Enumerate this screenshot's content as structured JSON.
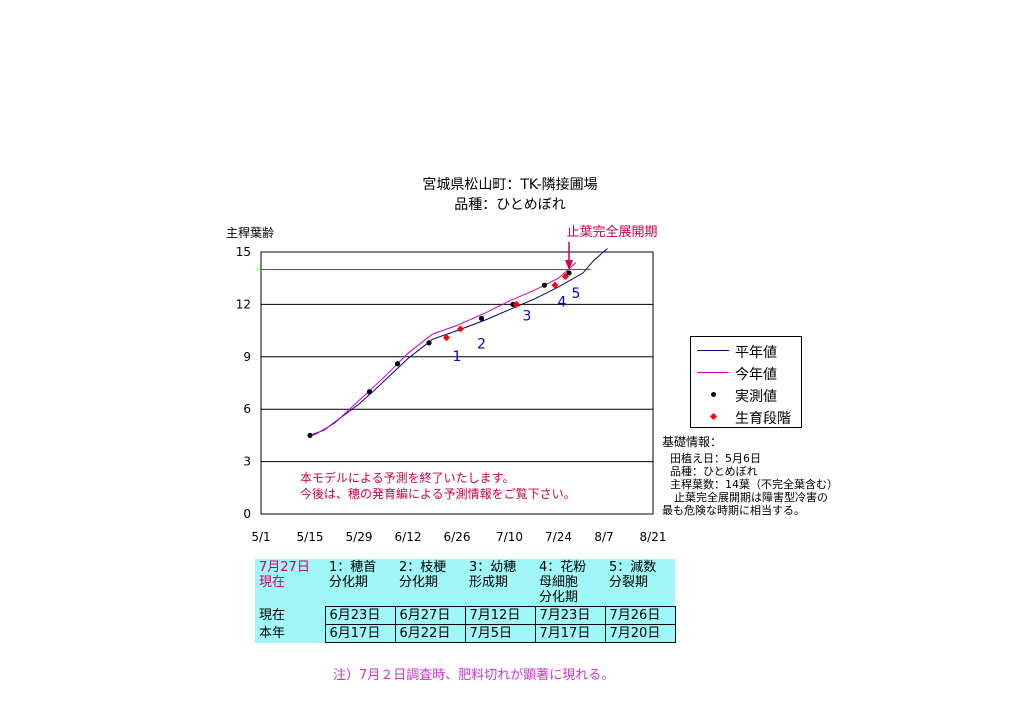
{
  "chart_data": {
    "type": "line",
    "title": "宮城県松山町：TK-隣接圃場",
    "subtitle": "品種：ひとめぼれ",
    "ylabel": "主稈葉齢",
    "xlabel": "",
    "x_ticks": [
      "5/1",
      "5/15",
      "5/29",
      "6/12",
      "6/26",
      "7/10",
      "7/24",
      "8/7",
      "8/21"
    ],
    "xlim": [
      "5/1",
      "8/21"
    ],
    "ylim": [
      0,
      15
    ],
    "y_ticks": [
      0,
      3,
      6,
      9,
      12,
      15
    ],
    "grid": "horizontal",
    "legend_position": "right",
    "series": [
      {
        "name": "平年値",
        "kind": "line",
        "color": "#000080",
        "points": [
          [
            "5/15",
            4.5
          ],
          [
            "5/19",
            4.8
          ],
          [
            "5/29",
            6.3
          ],
          [
            "6/3",
            7.2
          ],
          [
            "6/12",
            8.9
          ],
          [
            "6/19",
            10.0
          ],
          [
            "6/26",
            10.5
          ],
          [
            "7/3",
            11.1
          ],
          [
            "7/10",
            11.7
          ],
          [
            "7/17",
            12.3
          ],
          [
            "7/24",
            13.0
          ],
          [
            "7/31",
            13.8
          ],
          [
            "8/4",
            14.5
          ],
          [
            "8/8",
            15.2
          ]
        ]
      },
      {
        "name": "今年値",
        "kind": "line",
        "color": "#cc00cc",
        "points": [
          [
            "5/16",
            4.5
          ],
          [
            "5/22",
            5.2
          ],
          [
            "5/29",
            6.5
          ],
          [
            "6/5",
            7.8
          ],
          [
            "6/12",
            9.2
          ],
          [
            "6/19",
            10.3
          ],
          [
            "6/26",
            10.8
          ],
          [
            "7/3",
            11.5
          ],
          [
            "7/10",
            12.2
          ],
          [
            "7/17",
            12.8
          ],
          [
            "7/24",
            13.5
          ],
          [
            "7/29",
            14.4
          ]
        ]
      },
      {
        "name": "実測値",
        "kind": "scatter",
        "color": "#000000",
        "points": [
          [
            "5/15",
            4.5
          ],
          [
            "6/1",
            7.0
          ],
          [
            "6/9",
            8.6
          ],
          [
            "6/18",
            9.8
          ],
          [
            "7/2",
            11.2
          ],
          [
            "7/11",
            12.0
          ],
          [
            "7/20",
            13.1
          ],
          [
            "7/27",
            13.8
          ]
        ]
      },
      {
        "name": "生育段階",
        "kind": "scatter",
        "color": "#ff0000",
        "points": [
          [
            "6/23",
            10.1
          ],
          [
            "6/27",
            10.6
          ],
          [
            "7/12",
            12.0
          ],
          [
            "7/23",
            13.1
          ],
          [
            "7/26",
            13.6
          ]
        ]
      }
    ],
    "reference_line": {
      "value": 14,
      "from": "5/1",
      "to": "8/3",
      "color": "#cc00cc"
    },
    "annotations": {
      "stop_label": "止葉完全展開期",
      "arrow_date": "7/27",
      "message_lines": [
        "本モデルによる予測を終了いたします。",
        "今後は、穂の発育編による予測情報をご覧下さい。"
      ],
      "stage_numbers": [
        {
          "label": "1",
          "x": "6/26",
          "y": 9.0
        },
        {
          "label": "2",
          "x": "7/2",
          "y": 9.7
        },
        {
          "label": "3",
          "x": "7/15",
          "y": 11.3
        },
        {
          "label": "4",
          "x": "7/25",
          "y": 12.1
        },
        {
          "label": "5",
          "x": "7/29",
          "y": 12.6
        }
      ]
    }
  },
  "legend": [
    {
      "label": "平年値",
      "type": "line",
      "color": "#000080"
    },
    {
      "label": "今年値",
      "type": "line",
      "color": "#cc00cc"
    },
    {
      "label": "実測値",
      "type": "dot",
      "color": "#000000"
    },
    {
      "label": "生育段階",
      "type": "diamond",
      "color": "#ff0000"
    }
  ],
  "info": {
    "heading": "基礎情報：",
    "lines": [
      "田植え日：5月6日",
      "品種：ひとめぼれ",
      "主稈葉数：14葉（不完全葉含む）",
      "止葉完全展開期は障害型冷害の",
      "最も危険な時期に相当する。"
    ]
  },
  "table": {
    "corner": [
      "7月27日",
      "現在"
    ],
    "headers": [
      [
        "1：穂首",
        "分化期"
      ],
      [
        "2：枝梗",
        "分化期"
      ],
      [
        "3：幼穂",
        "形成期"
      ],
      [
        "4：花粉",
        "母細胞",
        "分化期"
      ],
      [
        "5：減数",
        "分裂期"
      ]
    ],
    "rows": [
      {
        "label": "現在",
        "values": [
          "6月23日",
          "6月27日",
          "7月12日",
          "7月23日",
          "7月26日"
        ]
      },
      {
        "label": "本年",
        "values": [
          "6月17日",
          "6月22日",
          "7月5日",
          "7月17日",
          "7月20日"
        ]
      }
    ]
  },
  "note": "注）7月２日調査時、肥料切れが顕著に現れる。"
}
